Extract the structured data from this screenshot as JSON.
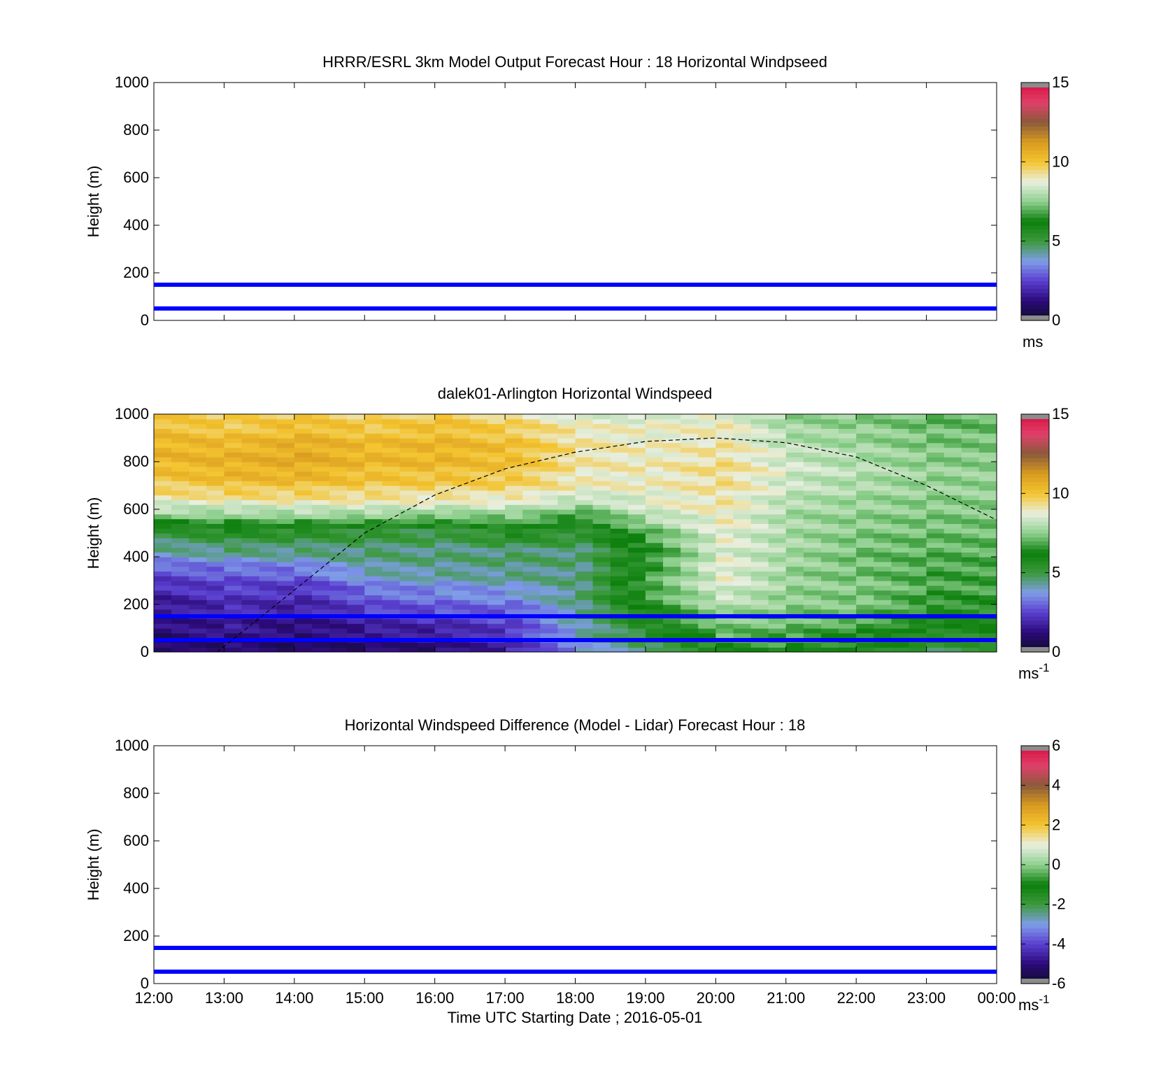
{
  "figure": {
    "xlabel": "Time UTC  Starting Date ; 2016-05-01",
    "x_ticks": [
      "12:00",
      "13:00",
      "14:00",
      "15:00",
      "16:00",
      "17:00",
      "18:00",
      "19:00",
      "20:00",
      "21:00",
      "22:00",
      "23:00",
      "00:00"
    ],
    "y_ticks": [
      "0",
      "200",
      "400",
      "600",
      "800",
      "1000"
    ]
  },
  "colormap_stops": [
    "#0d0d2a",
    "#2c0a7a",
    "#5a3fd0",
    "#7f9de8",
    "#3c9a3c",
    "#0b7f0b",
    "#8fd08f",
    "#e9efe0",
    "#f4c430",
    "#d99b1f",
    "#8a5a3a",
    "#e0406a",
    "#d81040"
  ],
  "chart_data": [
    {
      "type": "heatmap",
      "title": "HRRR/ESRL 3km Model Output   Forecast Hour : 18 Horizontal Windpseed",
      "ylabel": "Height (m)",
      "ylim": [
        0,
        1000
      ],
      "xlim": [
        "12:00",
        "00:00"
      ],
      "reference_lines_m": [
        50,
        150
      ],
      "reference_line_color": "#0000ff",
      "colorbar": {
        "min": 0,
        "max": 15,
        "ticks": [
          "0",
          "5",
          "10",
          "15"
        ],
        "unit": "ms"
      },
      "cells": []
    },
    {
      "type": "heatmap",
      "title": "dalek01-Arlington  Horizontal Windspeed",
      "ylabel": "Height (m)",
      "ylim": [
        0,
        1000
      ],
      "xlim": [
        "12:00",
        "00:00"
      ],
      "reference_lines_m": [
        50,
        150
      ],
      "reference_line_color": "#0000ff",
      "boundary_layer_curve": {
        "style": "dashed",
        "points": [
          {
            "t": "12:54",
            "h": 0
          },
          {
            "t": "14:00",
            "h": 260
          },
          {
            "t": "15:00",
            "h": 500
          },
          {
            "t": "16:00",
            "h": 660
          },
          {
            "t": "17:00",
            "h": 770
          },
          {
            "t": "18:00",
            "h": 840
          },
          {
            "t": "19:00",
            "h": 885
          },
          {
            "t": "20:00",
            "h": 900
          },
          {
            "t": "21:00",
            "h": 880
          },
          {
            "t": "22:00",
            "h": 820
          },
          {
            "t": "23:00",
            "h": 700
          },
          {
            "t": "00:00",
            "h": 555
          }
        ]
      },
      "colorbar": {
        "min": 0,
        "max": 15,
        "ticks": [
          "0",
          "5",
          "10",
          "15"
        ],
        "unit": "ms",
        "unit_sup": "-1"
      },
      "column_profiles_ms": [
        {
          "t": "12:00",
          "v": [
            0.8,
            1.2,
            1.5,
            2.0,
            2.8,
            4.2,
            5.2,
            8.0,
            9.5,
            10.2,
            10.5,
            10.2,
            9.8
          ]
        },
        {
          "t": "13:00",
          "v": [
            1.0,
            1.5,
            2.0,
            2.4,
            3.0,
            4.5,
            5.6,
            8.0,
            9.8,
            10.5,
            10.5,
            10.0,
            9.5
          ]
        },
        {
          "t": "14:00",
          "v": [
            0.8,
            1.2,
            1.8,
            2.2,
            3.2,
            4.5,
            5.4,
            8.2,
            9.8,
            10.6,
            10.8,
            10.3,
            9.7
          ]
        },
        {
          "t": "15:00",
          "v": [
            1.0,
            1.6,
            2.5,
            3.2,
            4.2,
            4.6,
            5.2,
            8.2,
            9.6,
            10.2,
            10.4,
            10.0,
            9.4
          ]
        },
        {
          "t": "16:00",
          "v": [
            1.2,
            1.8,
            2.8,
            3.5,
            4.4,
            4.5,
            5.0,
            8.0,
            9.5,
            10.2,
            10.5,
            10.2,
            9.8
          ]
        },
        {
          "t": "17:00",
          "v": [
            2.0,
            2.4,
            3.0,
            3.8,
            4.5,
            4.6,
            5.8,
            8.0,
            9.4,
            10.0,
            10.2,
            9.8,
            9.2
          ]
        },
        {
          "t": "18:00",
          "v": [
            3.8,
            4.2,
            4.5,
            4.6,
            4.5,
            4.6,
            5.4,
            7.2,
            8.8,
            9.0,
            9.2,
            9.0,
            8.5
          ]
        },
        {
          "t": "19:00",
          "v": [
            4.8,
            5.6,
            6.4,
            7.0,
            6.8,
            6.5,
            7.2,
            8.5,
            8.8,
            9.0,
            8.9,
            8.8,
            8.6
          ]
        },
        {
          "t": "20:00",
          "v": [
            6.5,
            7.2,
            7.8,
            8.5,
            8.8,
            8.6,
            8.8,
            9.0,
            9.2,
            9.4,
            9.2,
            9.0,
            8.8
          ]
        },
        {
          "t": "21:00",
          "v": [
            6.5,
            7.0,
            7.4,
            7.6,
            7.6,
            7.8,
            7.8,
            7.8,
            8.2,
            8.4,
            8.2,
            7.8,
            7.6
          ]
        },
        {
          "t": "22:00",
          "v": [
            6.0,
            6.6,
            7.2,
            7.4,
            7.2,
            7.2,
            7.4,
            7.6,
            7.8,
            8.0,
            7.8,
            7.6,
            7.4
          ]
        },
        {
          "t": "23:00",
          "v": [
            5.0,
            5.8,
            6.4,
            6.8,
            6.8,
            7.0,
            7.2,
            7.4,
            7.6,
            7.6,
            7.4,
            7.2,
            7.0
          ]
        }
      ]
    },
    {
      "type": "heatmap",
      "title": "Horizontal Windspeed Difference (Model - Lidar) Forecast Hour : 18",
      "ylabel": "Height (m)",
      "ylim": [
        0,
        1000
      ],
      "xlim": [
        "12:00",
        "00:00"
      ],
      "reference_lines_m": [
        50,
        150
      ],
      "reference_line_color": "#0000ff",
      "colorbar": {
        "min": -6,
        "max": 6,
        "ticks": [
          "-6",
          "-4",
          "-2",
          "0",
          "2",
          "4",
          "6"
        ],
        "unit": "ms",
        "unit_sup": "-1"
      },
      "cells": []
    }
  ]
}
